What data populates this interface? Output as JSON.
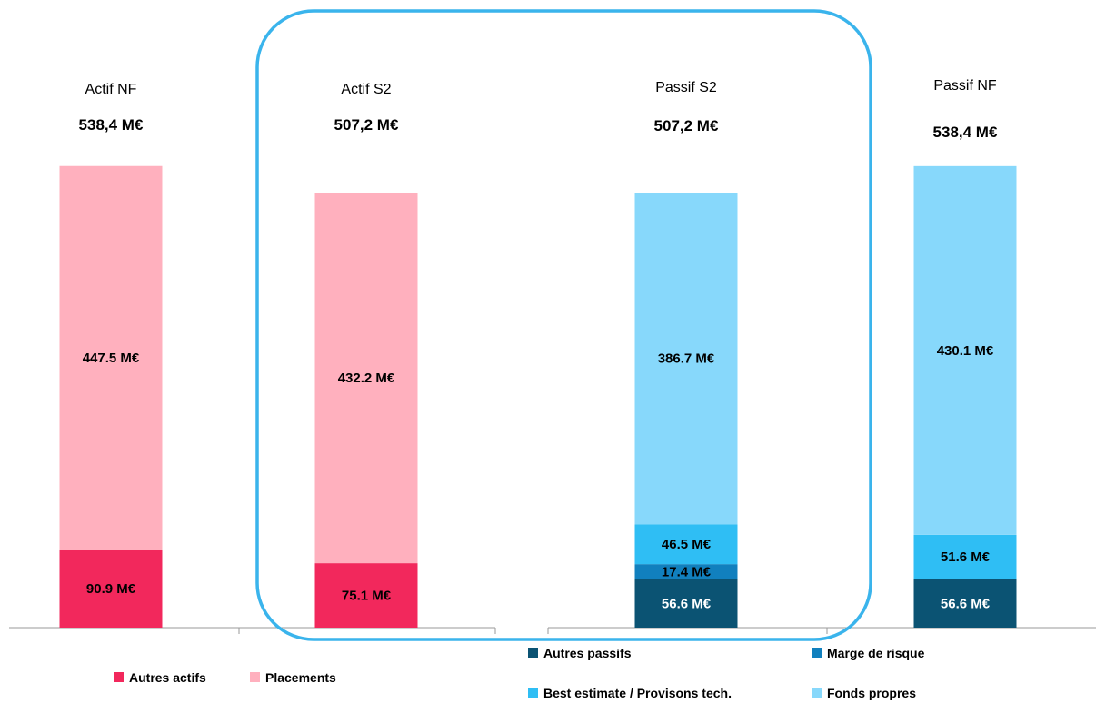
{
  "chart_data": {
    "type": "bar",
    "stacked": true,
    "unit": "M€",
    "columns": [
      {
        "title": "Actif  NF",
        "total_label": "538,4 M€",
        "segments": [
          {
            "series": "Autres actifs",
            "value": 90.9,
            "label": "90.9  M€"
          },
          {
            "series": "Placements",
            "value": 447.5,
            "label": "447.5  M€"
          }
        ]
      },
      {
        "title": "Actif  S2",
        "total_label": "507,2 M€",
        "segments": [
          {
            "series": "Autres actifs",
            "value": 75.1,
            "label": "75.1  M€"
          },
          {
            "series": "Placements",
            "value": 432.2,
            "label": "432.2  M€"
          }
        ]
      },
      {
        "title": "Passif S2",
        "total_label": "507,2 M€",
        "segments": [
          {
            "series": "Autres passifs",
            "value": 56.6,
            "label": "56.6  M€"
          },
          {
            "series": "Marge de risque",
            "value": 17.4,
            "label": "17.4  M€"
          },
          {
            "series": "Best estimate / Provisons tech.",
            "value": 46.5,
            "label": "46.5  M€"
          },
          {
            "series": "Fonds propres",
            "value": 386.7,
            "label": "386.7  M€"
          }
        ]
      },
      {
        "title": "Passif NF",
        "total_label": "538,4 M€",
        "segments": [
          {
            "series": "Autres passifs",
            "value": 56.6,
            "label": "56.6  M€"
          },
          {
            "series": "Best estimate / Provisons tech.",
            "value": 51.6,
            "label": "51.6  M€"
          },
          {
            "series": "Fonds propres",
            "value": 430.1,
            "label": "430.1  M€"
          }
        ]
      }
    ],
    "series_colors": {
      "Autres actifs": "#F2285C",
      "Placements": "#FFB0BE",
      "Autres passifs": "#0B5373",
      "Marge de risque": "#1180BE",
      "Best estimate / Provisons tech.": "#2FBEF4",
      "Fonds propres": "#87D8FB"
    },
    "label_colors": {
      "Autres passifs": "#ffffff",
      "default": "#000000"
    },
    "legend_left": [
      "Autres actifs",
      "Placements"
    ],
    "legend_right": [
      "Autres passifs",
      "Marge de risque",
      "Best estimate / Provisons tech.",
      "Fonds propres"
    ],
    "highlight_box_color": "#3AB4EC"
  }
}
